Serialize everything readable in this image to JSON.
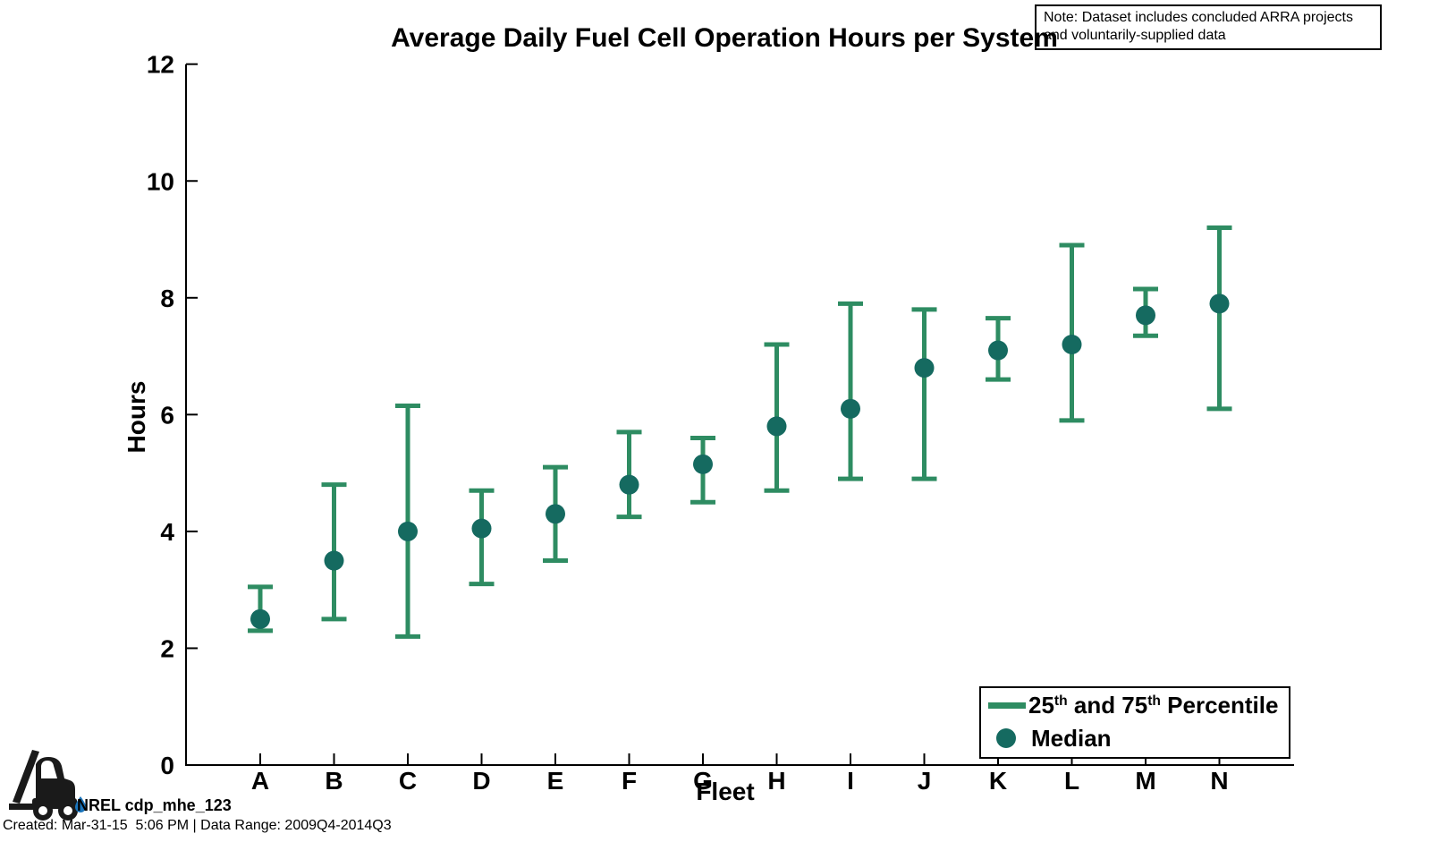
{
  "note": {
    "text": "Note: Dataset includes concluded ARRA projects and voluntarily-supplied data"
  },
  "legend": {
    "percentile": {
      "p1": "25",
      "sup1": "th",
      "mid": " and 75",
      "sup2": "th",
      "tail": " Percentile"
    },
    "median_label": "Median"
  },
  "footer": {
    "logo_label": "NREL cdp_mhe_123",
    "created": "Created: Mar-31-15  5:06 PM | Data Range: 2009Q4-2014Q3"
  },
  "colors": {
    "errorbar": "#2E8C62",
    "median_dot": "#156A60",
    "axis": "#000000",
    "droplet_blue": "#1B75BC",
    "logo_black": "#1A1A1A"
  },
  "chart_data": {
    "type": "scatter",
    "subtype": "errorbar",
    "title": "Average Daily Fuel Cell Operation Hours per System",
    "xlabel": "Fleet",
    "ylabel": "Hours",
    "ylim": [
      0,
      12
    ],
    "yticks": [
      0,
      2,
      4,
      6,
      8,
      10,
      12
    ],
    "grid": false,
    "legend_position": "lower right",
    "categories": [
      "A",
      "B",
      "C",
      "D",
      "E",
      "F",
      "G",
      "H",
      "I",
      "J",
      "K",
      "L",
      "M",
      "N"
    ],
    "series": [
      {
        "name": "Median",
        "values": [
          2.5,
          3.5,
          4.0,
          4.05,
          4.3,
          4.8,
          5.15,
          5.8,
          6.1,
          6.8,
          7.1,
          7.2,
          7.7,
          7.9
        ]
      },
      {
        "name": "25th Percentile",
        "values": [
          2.3,
          2.5,
          2.2,
          3.1,
          3.5,
          4.25,
          4.5,
          4.7,
          4.9,
          4.9,
          6.6,
          5.9,
          7.35,
          6.1
        ]
      },
      {
        "name": "75th Percentile",
        "values": [
          3.05,
          4.8,
          6.15,
          4.7,
          5.1,
          5.7,
          5.6,
          7.2,
          7.9,
          7.8,
          7.65,
          8.9,
          8.15,
          9.2
        ]
      }
    ]
  }
}
